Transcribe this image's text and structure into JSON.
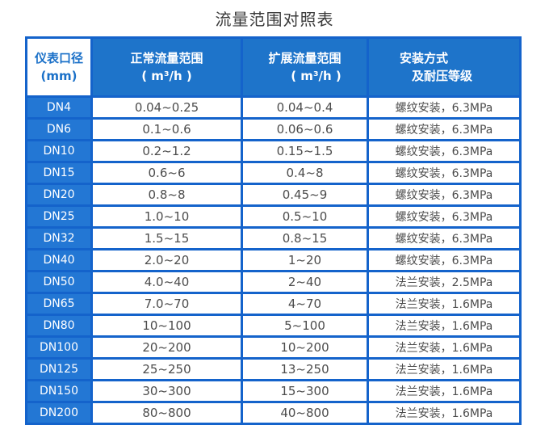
{
  "title": "流量范围对照表",
  "colors": {
    "grid_blue": "#1463cb",
    "header_bg": "#1e74ca",
    "dn_cell_bg": "#2377d4",
    "header_text_blue": "#1a70c8",
    "data_text": "#4c4c4c",
    "title_text": "#3a3a3a"
  },
  "table": {
    "header": {
      "col1_line1": "仪表口径",
      "col1_line2": "(mm)",
      "col2_line1": "正常流量范围",
      "col2_line2": "( m³/h )",
      "col3_line1": "扩展流量范围",
      "col3_line2": "( m³/h )",
      "col4_line1": "安装方式",
      "col4_line2": "及耐压等级"
    },
    "rows": [
      {
        "dn": "DN4",
        "normal": "0.04~0.25",
        "extended": "0.04~0.4",
        "install": "螺纹安装，6.3MPa"
      },
      {
        "dn": "DN6",
        "normal": "0.1~0.6",
        "extended": "0.06~0.6",
        "install": "螺纹安装，6.3MPa"
      },
      {
        "dn": "DN10",
        "normal": "0.2~1.2",
        "extended": "0.15~1.5",
        "install": "螺纹安装，6.3MPa"
      },
      {
        "dn": "DN15",
        "normal": "0.6~6",
        "extended": "0.4~8",
        "install": "螺纹安装，6.3MPa"
      },
      {
        "dn": "DN20",
        "normal": "0.8~8",
        "extended": "0.45~9",
        "install": "螺纹安装，6.3MPa"
      },
      {
        "dn": "DN25",
        "normal": "1.0~10",
        "extended": "0.5~10",
        "install": "螺纹安装，6.3MPa"
      },
      {
        "dn": "DN32",
        "normal": "1.5~15",
        "extended": "0.8~15",
        "install": "螺纹安装，6.3MPa"
      },
      {
        "dn": "DN40",
        "normal": "2.0~20",
        "extended": "1~20",
        "install": "螺纹安装，6.3MPa"
      },
      {
        "dn": "DN50",
        "normal": "4.0~40",
        "extended": "2~40",
        "install": "法兰安装，2.5MPa"
      },
      {
        "dn": "DN65",
        "normal": "7.0~70",
        "extended": "4~70",
        "install": "法兰安装，1.6MPa"
      },
      {
        "dn": "DN80",
        "normal": "10~100",
        "extended": "5~100",
        "install": "法兰安装，1.6MPa"
      },
      {
        "dn": "DN100",
        "normal": "20~200",
        "extended": "10~200",
        "install": "法兰安装，1.6MPa"
      },
      {
        "dn": "DN125",
        "normal": "25~250",
        "extended": "13~250",
        "install": "法兰安装，1.6MPa"
      },
      {
        "dn": "DN150",
        "normal": "30~300",
        "extended": "15~300",
        "install": "法兰安装，1.6MPa"
      },
      {
        "dn": "DN200",
        "normal": "80~800",
        "extended": "40~800",
        "install": "法兰安装，1.6MPa"
      }
    ]
  }
}
